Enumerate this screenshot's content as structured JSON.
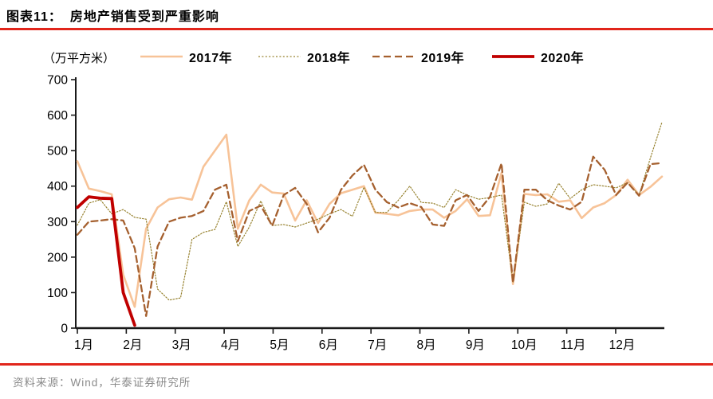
{
  "header": {
    "title_prefix": "图表11：",
    "title": "房地产销售受到严重影响"
  },
  "unit_label": "（万平方米）",
  "legend": [
    {
      "label": "2017年",
      "color": "#f7c398",
      "style": "solid"
    },
    {
      "label": "2018年",
      "color": "#97822f",
      "style": "dotted"
    },
    {
      "label": "2019年",
      "color": "#a5602f",
      "style": "dashed"
    },
    {
      "label": "2020年",
      "color": "#c00000",
      "style": "solid-thick"
    }
  ],
  "colors": {
    "accent_red": "#e1251b",
    "axis": "#1a1a1a",
    "source_text": "#8a8a8a"
  },
  "chart_data": {
    "type": "line",
    "title": "房地产销售受到严重影响",
    "ylabel": "（万平方米）",
    "xlabel": "",
    "ylim": [
      0,
      700
    ],
    "yticks": [
      0,
      100,
      200,
      300,
      400,
      500,
      600,
      700
    ],
    "months": [
      "1月",
      "2月",
      "3月",
      "4月",
      "5月",
      "6月",
      "7月",
      "8月",
      "9月",
      "10月",
      "11月",
      "12月"
    ],
    "x_unit": "week-of-year (52 weekly observations per year)",
    "grid": false,
    "legend_position": "top",
    "series": [
      {
        "name": "2017年",
        "values": [
          470,
          393,
          386,
          377,
          150,
          60,
          280,
          340,
          363,
          368,
          362,
          455,
          500,
          545,
          280,
          360,
          404,
          382,
          379,
          303,
          360,
          296,
          350,
          380,
          390,
          400,
          325,
          322,
          318,
          330,
          334,
          334,
          311,
          330,
          363,
          316,
          318,
          437,
          124,
          378,
          375,
          377,
          356,
          360,
          310,
          340,
          352,
          375,
          418,
          375,
          398,
          427
        ]
      },
      {
        "name": "2018年",
        "values": [
          290,
          352,
          362,
          322,
          334,
          312,
          307,
          110,
          79,
          85,
          250,
          270,
          278,
          356,
          230,
          285,
          358,
          289,
          292,
          285,
          296,
          307,
          322,
          334,
          315,
          397,
          326,
          326,
          360,
          400,
          354,
          352,
          340,
          390,
          375,
          363,
          368,
          375,
          128,
          355,
          343,
          350,
          408,
          365,
          390,
          404,
          400,
          395,
          410,
          375,
          480,
          580
        ]
      },
      {
        "name": "2019年",
        "values": [
          263,
          300,
          303,
          307,
          303,
          225,
          34,
          230,
          300,
          311,
          316,
          330,
          390,
          404,
          245,
          330,
          345,
          288,
          375,
          395,
          350,
          270,
          311,
          390,
          430,
          460,
          390,
          355,
          340,
          352,
          341,
          292,
          288,
          360,
          375,
          330,
          370,
          464,
          128,
          390,
          390,
          360,
          345,
          334,
          356,
          483,
          446,
          375,
          410,
          373,
          462,
          465
        ]
      },
      {
        "name": "2020年",
        "values": [
          340,
          370,
          366,
          365,
          100,
          8
        ]
      }
    ]
  },
  "footer": {
    "source": "资料来源：Wind，华泰证券研究所"
  }
}
